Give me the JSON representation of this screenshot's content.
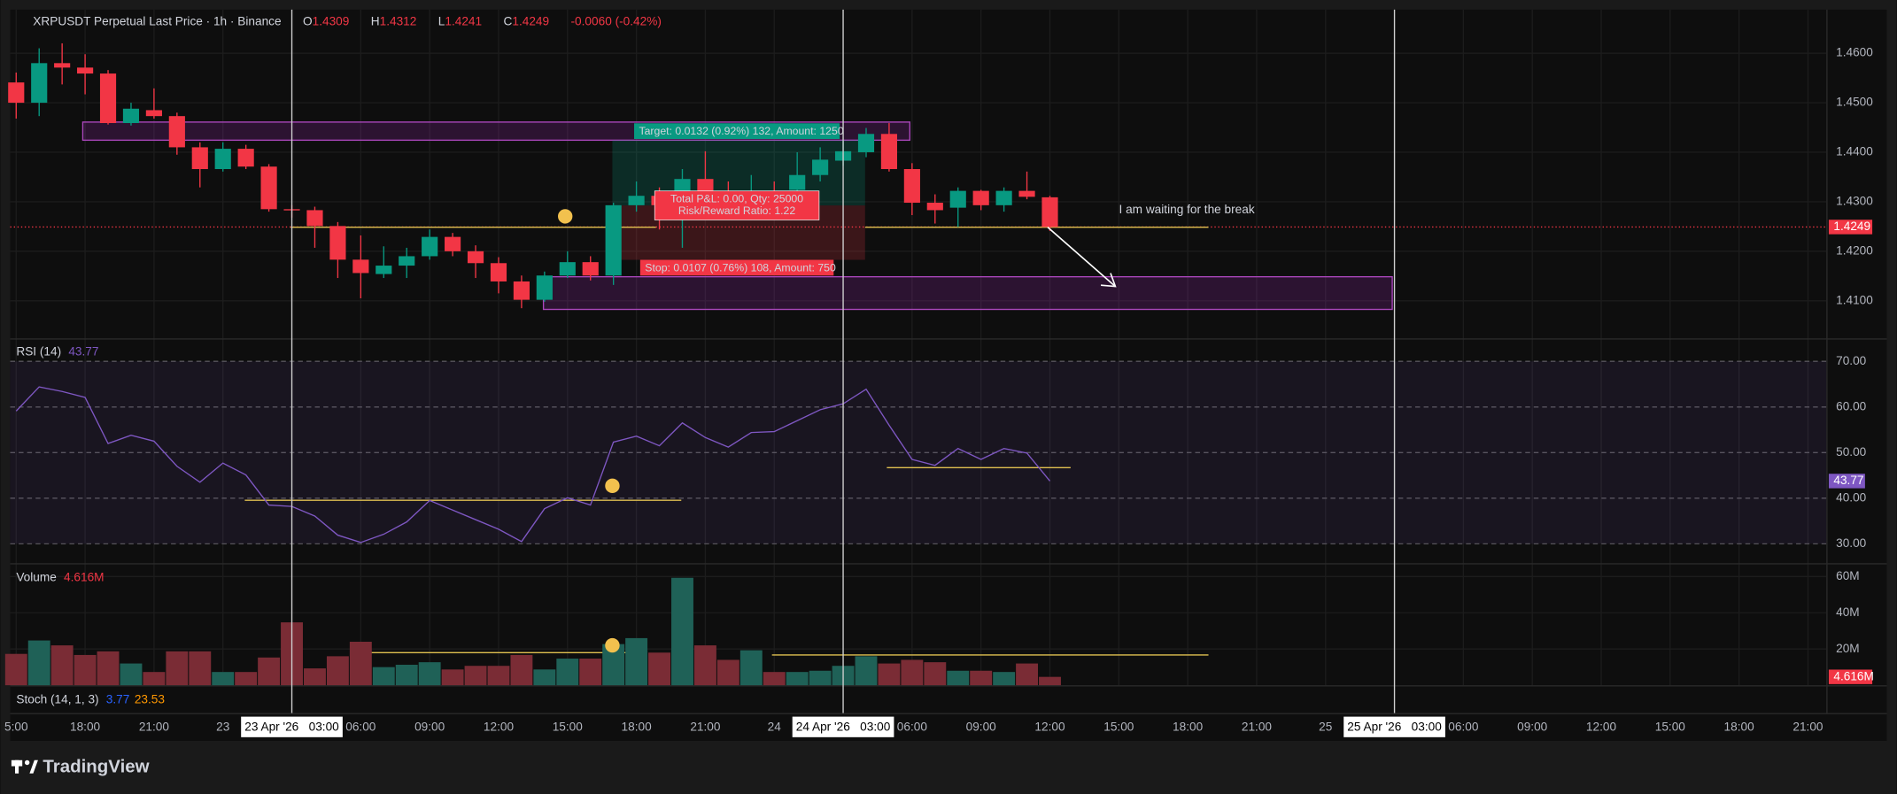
{
  "header": {
    "symbol": "XRPUSDT Perpetual Last Price · 1h · Binance",
    "ohlc_labels": [
      "O",
      "H",
      "L",
      "C"
    ],
    "change": "-0.0060 (-0.42%)"
  },
  "time_axis": {
    "xlim": [
      -0.26,
      78.8
    ],
    "xticks": [
      {
        "value": 0,
        "label": "5:00"
      },
      {
        "value": 3,
        "label": "18:00"
      },
      {
        "value": 6,
        "label": "21:00"
      },
      {
        "value": 9,
        "label": "23"
      },
      {
        "value": 12,
        "label": "23 Apr '26   03:00"
      },
      {
        "value": 15,
        "label": "06:00"
      },
      {
        "value": 18,
        "label": "09:00"
      },
      {
        "value": 21,
        "label": "12:00"
      },
      {
        "value": 24,
        "label": "15:00"
      },
      {
        "value": 27,
        "label": "18:00"
      },
      {
        "value": 30,
        "label": "21:00"
      },
      {
        "value": 33,
        "label": "24"
      },
      {
        "value": 36,
        "label": "24 Apr '26   03:00"
      },
      {
        "value": 39,
        "label": "06:00"
      },
      {
        "value": 42,
        "label": "09:00"
      },
      {
        "value": 45,
        "label": "12:00"
      },
      {
        "value": 48,
        "label": "15:00"
      },
      {
        "value": 51,
        "label": "18:00"
      },
      {
        "value": 54,
        "label": "21:00"
      },
      {
        "value": 57,
        "label": "25"
      },
      {
        "value": 60,
        "label": "25 Apr '26   03:00"
      },
      {
        "value": 63,
        "label": "06:00"
      },
      {
        "value": 66,
        "label": "09:00"
      },
      {
        "value": 69,
        "label": "12:00"
      },
      {
        "value": 72,
        "label": "15:00"
      },
      {
        "value": 75,
        "label": "18:00"
      },
      {
        "value": 78,
        "label": "21:00"
      }
    ],
    "highlighted": [
      12,
      36,
      60
    ]
  },
  "chart_data": [
    {
      "type": "candlestick",
      "up_color": "#089981",
      "down_color": "#f23645",
      "grid": true,
      "open": [
        1.4541,
        1.45,
        1.458,
        1.4571,
        1.4559,
        1.4459,
        1.4485,
        1.4473,
        1.441,
        1.4366,
        1.4407,
        1.4371,
        1.4285,
        1.4283,
        1.4251,
        1.4183,
        1.4154,
        1.4171,
        1.419,
        1.4229,
        1.42,
        1.4176,
        1.4139,
        1.4102,
        1.4151,
        1.4178,
        1.4151,
        1.4293,
        1.4312,
        1.4293,
        1.4346,
        1.4317,
        1.429,
        1.4322,
        1.4324,
        1.4354,
        1.4383,
        1.44,
        1.4437,
        1.4366,
        1.4298,
        1.4288,
        1.4322,
        1.4293,
        1.4322,
        1.4309
      ],
      "high": [
        1.4561,
        1.461,
        1.462,
        1.4598,
        1.4566,
        1.45,
        1.4529,
        1.448,
        1.442,
        1.442,
        1.4415,
        1.4376,
        1.4293,
        1.429,
        1.4259,
        1.4232,
        1.421,
        1.4207,
        1.4244,
        1.4237,
        1.4212,
        1.4188,
        1.4151,
        1.4159,
        1.42,
        1.419,
        1.4298,
        1.4341,
        1.4329,
        1.4366,
        1.4402,
        1.4341,
        1.4354,
        1.4341,
        1.44,
        1.441,
        1.4424,
        1.4449,
        1.4459,
        1.4378,
        1.4315,
        1.4329,
        1.4324,
        1.4329,
        1.4361,
        1.4312
      ],
      "low": [
        1.4468,
        1.4473,
        1.4537,
        1.4517,
        1.4456,
        1.4454,
        1.4468,
        1.4395,
        1.4329,
        1.4361,
        1.4366,
        1.428,
        1.4268,
        1.4207,
        1.4146,
        1.4105,
        1.4146,
        1.4146,
        1.4183,
        1.419,
        1.4146,
        1.4115,
        1.4085,
        1.4098,
        1.4146,
        1.4141,
        1.4132,
        1.428,
        1.4244,
        1.4207,
        1.4293,
        1.4278,
        1.4273,
        1.428,
        1.4312,
        1.4341,
        1.4373,
        1.439,
        1.4361,
        1.4273,
        1.4256,
        1.4249,
        1.4283,
        1.428,
        1.4305,
        1.4241
      ],
      "close": [
        1.45,
        1.458,
        1.4571,
        1.4559,
        1.4459,
        1.4488,
        1.4473,
        1.441,
        1.4366,
        1.4407,
        1.4371,
        1.4285,
        1.4283,
        1.4251,
        1.4183,
        1.4156,
        1.4171,
        1.419,
        1.4229,
        1.42,
        1.4176,
        1.4139,
        1.4102,
        1.4151,
        1.4178,
        1.4151,
        1.4293,
        1.4312,
        1.4293,
        1.4346,
        1.4312,
        1.4285,
        1.4322,
        1.4305,
        1.4354,
        1.4385,
        1.4402,
        1.4437,
        1.4366,
        1.4298,
        1.4283,
        1.4322,
        1.4293,
        1.4322,
        1.431,
        1.4249
      ],
      "ylim": [
        1.4024,
        1.4688
      ],
      "yticks": [
        {
          "value": 1.41,
          "label": "1.4100"
        },
        {
          "value": 1.42,
          "label": "1.4200"
        },
        {
          "value": 1.43,
          "label": "1.4300"
        },
        {
          "value": 1.44,
          "label": "1.4400"
        },
        {
          "value": 1.45,
          "label": "1.4500"
        },
        {
          "value": 1.46,
          "label": "1.4600"
        }
      ]
    },
    {
      "type": "line",
      "title": "RSI (14)",
      "color": "#7e57c2",
      "values": [
        59.1,
        64.4,
        63.4,
        62.1,
        52.0,
        53.8,
        52.5,
        47.0,
        43.5,
        47.7,
        45.1,
        38.5,
        38.2,
        36.1,
        31.9,
        30.3,
        32.1,
        34.8,
        39.5,
        37.4,
        35.3,
        33.2,
        30.5,
        37.7,
        40.1,
        38.5,
        52.3,
        53.6,
        51.5,
        56.5,
        53.3,
        51.2,
        54.4,
        54.6,
        57.0,
        59.4,
        60.7,
        63.9,
        56.0,
        48.5,
        47.2,
        50.9,
        48.5,
        50.9,
        49.9,
        43.77
      ],
      "ylim": [
        25.76,
        74.77
      ],
      "yticks": [
        {
          "value": 30,
          "label": "30.00"
        },
        {
          "value": 40,
          "label": "40.00"
        },
        {
          "value": 50,
          "label": "50.00"
        },
        {
          "value": 60,
          "label": "60.00"
        },
        {
          "value": 70,
          "label": "70.00"
        }
      ]
    },
    {
      "type": "bar",
      "title": "Volume",
      "up_color": "#1f6157",
      "down_color": "#7a2c35",
      "values": [
        17.3,
        24.7,
        22,
        16.7,
        18.7,
        12,
        7.3,
        18.7,
        18.7,
        7.3,
        7.3,
        15.3,
        34.7,
        9.3,
        16,
        24,
        10,
        11.3,
        12.7,
        8.7,
        10.7,
        10.7,
        16.7,
        8.7,
        14.7,
        14.7,
        22.7,
        26,
        18,
        59.3,
        22,
        14,
        19.3,
        7.3,
        7.3,
        8,
        10.7,
        16,
        12,
        14,
        12.7,
        8,
        8,
        7.3,
        12,
        4.616
      ],
      "last_value_label": "4.616M",
      "ylim": [
        0,
        66.7
      ],
      "yticks": [
        {
          "value": 20,
          "label": "20M"
        },
        {
          "value": 40,
          "label": "40M"
        },
        {
          "value": 60,
          "label": "60M"
        }
      ]
    }
  ],
  "stoch": {
    "title": "Stoch (14, 1, 3)",
    "k": 3.77,
    "d": 23.53
  },
  "annotations": {
    "target": "Target: 0.0132 (0.92%) 132, Amount: 1250",
    "pnl": "Total P&L: 0.00, Qty: 25000",
    "rr": "Risk/Reward Ratio: 1.22",
    "stop": "Stop: 0.0107 (0.76%) 108, Amount: 750",
    "note": "I am waiting for the break"
  },
  "footer": {
    "brand": "TradingView"
  }
}
